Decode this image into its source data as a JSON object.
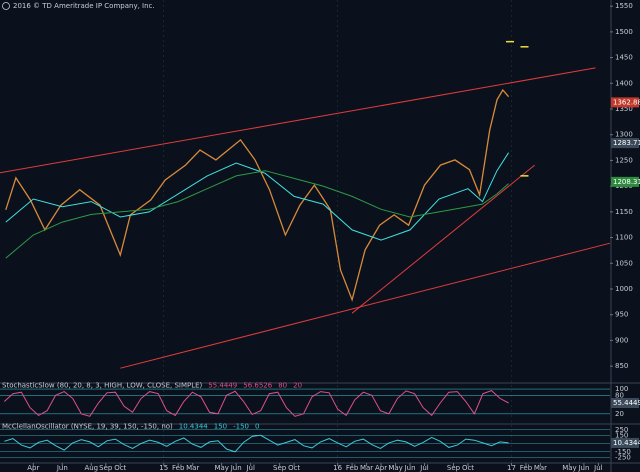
{
  "chart_data": {
    "type": "line",
    "title": "2016 © TD Ameritrade IP Company, Inc.",
    "xlim": [
      -2.3,
      39.8
    ],
    "xticks": [
      {
        "value": 0,
        "label": "Apr"
      },
      {
        "value": 2,
        "label": "Jun"
      },
      {
        "value": 4,
        "label": "Aug"
      },
      {
        "value": 5,
        "label": "Sep"
      },
      {
        "value": 6,
        "label": "Oct"
      },
      {
        "value": 9,
        "label": "15"
      },
      {
        "value": 10,
        "label": "Feb"
      },
      {
        "value": 11,
        "label": "Mar"
      },
      {
        "value": 13,
        "label": "May"
      },
      {
        "value": 14,
        "label": "Jun"
      },
      {
        "value": 15,
        "label": "Jul"
      },
      {
        "value": 17,
        "label": "Sep"
      },
      {
        "value": 18,
        "label": "Oct"
      },
      {
        "value": 21,
        "label": "16"
      },
      {
        "value": 22,
        "label": "Feb"
      },
      {
        "value": 23,
        "label": "Mar"
      },
      {
        "value": 24,
        "label": "Apr"
      },
      {
        "value": 25,
        "label": "May"
      },
      {
        "value": 26,
        "label": "Jun"
      },
      {
        "value": 27,
        "label": "Jul"
      },
      {
        "value": 29,
        "label": "Sep"
      },
      {
        "value": 30,
        "label": "Oct"
      },
      {
        "value": 33,
        "label": "17"
      },
      {
        "value": 34,
        "label": "Feb"
      },
      {
        "value": 35,
        "label": "Mar"
      },
      {
        "value": 37,
        "label": "May"
      },
      {
        "value": 38,
        "label": "Jun"
      },
      {
        "value": 39,
        "label": "Jul"
      }
    ],
    "ylim": [
      823,
      1562
    ],
    "yticks": [
      850,
      900,
      950,
      1000,
      1050,
      1100,
      1150,
      1200,
      1250,
      1300,
      1350,
      1400,
      1450,
      1500,
      1550
    ],
    "year_lines": [
      9,
      21,
      33
    ],
    "series": [
      {
        "color": "#d88a3a",
        "x": [
          -1.9,
          -1.2,
          -0.2,
          0.8,
          1.9,
          3.2,
          4.6,
          6.0,
          6.7,
          8.1,
          9.1,
          10.5,
          11.5,
          12.6,
          14.3,
          15.3,
          16.3,
          17.4,
          18.4,
          19.4,
          20.5,
          21.2,
          22.0,
          22.9,
          23.9,
          24.9,
          25.9,
          27.0,
          28.1,
          29.1,
          30.1,
          30.8,
          31.5,
          32.0,
          32.4,
          32.8
        ],
        "values": [
          1154,
          1216,
          1173,
          1115,
          1163,
          1193,
          1163,
          1066,
          1144,
          1173,
          1212,
          1241,
          1270,
          1251,
          1290,
          1251,
          1193,
          1105,
          1163,
          1202,
          1154,
          1037,
          979,
          1076,
          1124,
          1144,
          1124,
          1202,
          1241,
          1251,
          1232,
          1183,
          1309,
          1368,
          1387,
          1374
        ]
      },
      {
        "color": "#40e0e0",
        "x": [
          -1.9,
          0,
          2,
          4,
          6,
          8,
          10,
          12,
          14,
          16,
          18,
          20,
          22,
          24,
          26,
          28,
          30,
          31,
          32,
          32.8
        ],
        "values": [
          1130,
          1175,
          1160,
          1170,
          1140,
          1150,
          1185,
          1220,
          1245,
          1225,
          1180,
          1165,
          1115,
          1095,
          1115,
          1175,
          1195,
          1170,
          1230,
          1265
        ]
      },
      {
        "color": "#2e9b46",
        "x": [
          -1.9,
          0,
          2,
          4,
          6,
          8,
          10,
          12,
          14,
          16,
          18,
          20,
          22,
          24,
          26,
          28,
          30,
          31,
          32,
          32.8
        ],
        "values": [
          1060,
          1105,
          1130,
          1145,
          1150,
          1155,
          1170,
          1195,
          1220,
          1230,
          1215,
          1200,
          1180,
          1155,
          1140,
          1150,
          1160,
          1165,
          1185,
          1205
        ]
      }
    ],
    "trend_lines": [
      {
        "color": "#e03c3c",
        "x": [
          -2.3,
          38.8
        ],
        "values": [
          1226,
          1430
        ]
      },
      {
        "color": "#e03c3c",
        "x": [
          6.0,
          39.8
        ],
        "values": [
          846,
          1089
        ]
      },
      {
        "color": "#e03c3c",
        "x": [
          22.0,
          34.6
        ],
        "values": [
          953,
          1241
        ]
      }
    ],
    "markers": [
      {
        "x": 32.9,
        "value": 1481,
        "color": "#f0e040"
      },
      {
        "x": 33.9,
        "value": 1471,
        "color": "#f0e040"
      },
      {
        "x": 33.9,
        "value": 1220,
        "color": "#f0e040"
      }
    ],
    "price_tags": [
      {
        "value": 1362.88,
        "color": "#c0392b"
      },
      {
        "value": 1283.71,
        "color": "#3a4a5a"
      },
      {
        "value": 1208.31,
        "color": "#2e8b3e"
      }
    ],
    "studies": [
      {
        "label": "StochasticSlow (80, 20, 8, 3, HIGH, LOW, CLOSE, SIMPLE)",
        "readouts": [
          "55.4449",
          "56.6526",
          "80",
          "20"
        ],
        "color": "#e0508a",
        "ylim": [
          0,
          110
        ],
        "yticks": [
          20,
          80,
          100
        ],
        "last": "55.4449",
        "values": [
          60,
          85,
          90,
          40,
          15,
          30,
          80,
          92,
          70,
          20,
          12,
          55,
          88,
          90,
          45,
          25,
          70,
          92,
          85,
          30,
          15,
          60,
          90,
          75,
          25,
          20,
          80,
          93,
          60,
          18,
          30,
          85,
          90,
          40,
          12,
          20,
          75,
          92,
          88,
          35,
          15,
          65,
          90,
          80,
          30,
          20,
          70,
          94,
          85,
          40,
          15,
          55,
          90,
          92,
          60,
          20,
          85,
          95,
          70,
          55
        ]
      },
      {
        "label": "McClellanOscillator (NYSE, 19, 39, 150, -150, no)",
        "readouts": [
          "10.4344",
          "150",
          "-150",
          "0"
        ],
        "color": "#40c8d8",
        "ylim": [
          -300,
          300
        ],
        "yticks": [
          -250,
          -150,
          0,
          150,
          250
        ],
        "last": "10.4344",
        "values": [
          40,
          90,
          -30,
          -80,
          20,
          60,
          -40,
          -120,
          10,
          70,
          30,
          -60,
          50,
          80,
          -20,
          -90,
          0,
          60,
          20,
          -50,
          40,
          100,
          -10,
          -70,
          30,
          50,
          -100,
          -150,
          20,
          130,
          150,
          60,
          -30,
          20,
          70,
          -40,
          -80,
          30,
          90,
          10,
          -60,
          40,
          80,
          -20,
          -90,
          10,
          60,
          30,
          -50,
          20,
          110,
          40,
          -70,
          -30,
          80,
          60,
          10,
          -40,
          30,
          10
        ]
      }
    ]
  }
}
